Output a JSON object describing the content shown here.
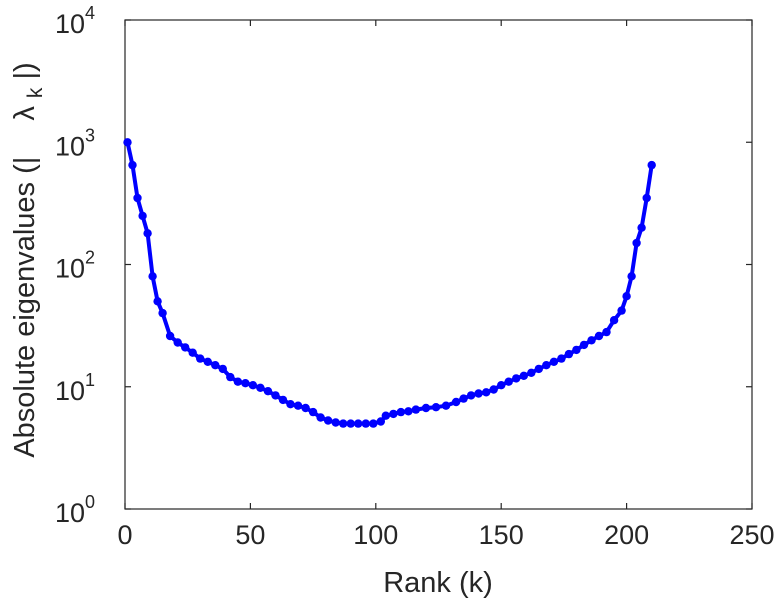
{
  "chart_data": {
    "type": "line",
    "title": "",
    "xlabel": "Rank (k)",
    "ylabel": {
      "prefix": "Absolute eigenvalues (|",
      "lambda": "λ",
      "sub": "k",
      "suffix": "|)"
    },
    "xlim": [
      0,
      250
    ],
    "ylim": [
      1,
      10000
    ],
    "yscale": "log",
    "grid": false,
    "box": true,
    "x_ticks": [
      "0",
      "50",
      "100",
      "150",
      "200",
      "250"
    ],
    "y_ticks": [
      {
        "base": "10",
        "exp": "0"
      },
      {
        "base": "10",
        "exp": "1"
      },
      {
        "base": "10",
        "exp": "2"
      },
      {
        "base": "10",
        "exp": "3"
      },
      {
        "base": "10",
        "exp": "4"
      }
    ],
    "series_color": "#0000ff",
    "series": [
      {
        "x": [
          1,
          3,
          5,
          7,
          9,
          11,
          13,
          15,
          18,
          21,
          24,
          27,
          30,
          33,
          36,
          39,
          42,
          45,
          48,
          51,
          54,
          57,
          60,
          63,
          66,
          69,
          72,
          75,
          78,
          81,
          84,
          87,
          90,
          93,
          96,
          99,
          102,
          104,
          107,
          110,
          113,
          116,
          120,
          124,
          128,
          132,
          135,
          138,
          141,
          144,
          147,
          150,
          153,
          156,
          159,
          162,
          165,
          168,
          171,
          174,
          177,
          180,
          183,
          186,
          189,
          192,
          195,
          198,
          200,
          202,
          204,
          206,
          208,
          210
        ],
        "values": [
          1000,
          650,
          350,
          250,
          180,
          80,
          50,
          40,
          26,
          23,
          21,
          19,
          17,
          16,
          15,
          14,
          12,
          11,
          10.7,
          10.3,
          9.8,
          9.2,
          8.5,
          7.8,
          7.2,
          7.0,
          6.7,
          6.2,
          5.6,
          5.3,
          5.1,
          5.0,
          5.0,
          5.0,
          5.0,
          5.0,
          5.2,
          5.8,
          6.0,
          6.2,
          6.3,
          6.5,
          6.7,
          6.8,
          7.0,
          7.5,
          8.0,
          8.5,
          8.8,
          9.0,
          9.5,
          10.3,
          11.0,
          11.7,
          12.3,
          13.0,
          14.0,
          15.0,
          16.0,
          17.0,
          18.5,
          20.0,
          22.0,
          24.0,
          26.0,
          28.0,
          35.0,
          42.0,
          55.0,
          80.0,
          150.0,
          200.0,
          350.0,
          650.0
        ]
      }
    ]
  }
}
